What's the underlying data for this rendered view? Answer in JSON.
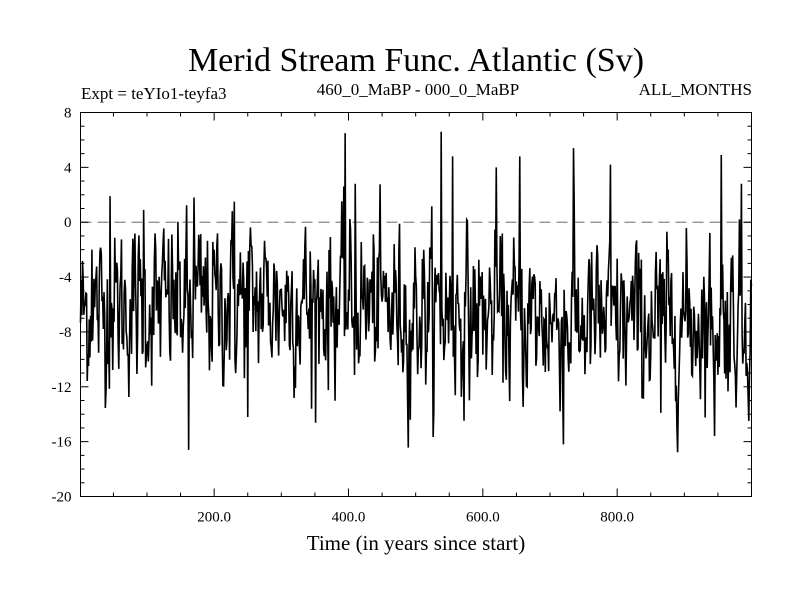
{
  "chart_data": {
    "type": "line",
    "title": "Merid Stream Func. Atlantic (Sv)",
    "subtitle_left": "Expt = teYIo1-teyfa3",
    "subtitle_center": "460_0_MaBP - 000_0_MaBP",
    "subtitle_right": "ALL_MONTHS",
    "xlabel": "Time (in years since start)",
    "ylabel": "",
    "xlim": [
      1,
      1000
    ],
    "ylim": [
      -20,
      8
    ],
    "y_ticks": [
      8,
      4,
      0,
      -4,
      -8,
      -12,
      -16,
      -20
    ],
    "y_tick_labels": [
      "8",
      "4",
      "0",
      "-4",
      "-8",
      "-12",
      "-16",
      "-20"
    ],
    "x_ticks": [
      200,
      400,
      600,
      800
    ],
    "x_tick_labels": [
      "200.0",
      "400.0",
      "600.0",
      "800.0"
    ],
    "reference_line": {
      "y": 0,
      "style": "dashed",
      "color": "#888888"
    },
    "series": [
      {
        "name": "Merid Stream Func. Atlantic",
        "color": "#000000",
        "x_start": 1,
        "x_step": 1,
        "n_points": 1000,
        "mean": -6.5,
        "noise_sd": 2.7,
        "peaks": [
          {
            "x": 18,
            "y": -2
          },
          {
            "x": 45,
            "y": 1.9
          },
          {
            "x": 95,
            "y": 0.9
          },
          {
            "x": 162,
            "y": -16.6
          },
          {
            "x": 170,
            "y": 1.8
          },
          {
            "x": 230,
            "y": 1.5
          },
          {
            "x": 250,
            "y": -14.2
          },
          {
            "x": 345,
            "y": -13.6
          },
          {
            "x": 395,
            "y": 6.5
          },
          {
            "x": 410,
            "y": 2.8
          },
          {
            "x": 492,
            "y": -14.4
          },
          {
            "x": 538,
            "y": 6.6
          },
          {
            "x": 555,
            "y": 4.8
          },
          {
            "x": 620,
            "y": 4.0
          },
          {
            "x": 655,
            "y": 4.8
          },
          {
            "x": 720,
            "y": -16.2
          },
          {
            "x": 735,
            "y": 5.4
          },
          {
            "x": 790,
            "y": 4.2
          },
          {
            "x": 865,
            "y": -13.9
          },
          {
            "x": 945,
            "y": -15.6
          },
          {
            "x": 955,
            "y": 4.9
          },
          {
            "x": 985,
            "y": 2.8
          }
        ]
      }
    ]
  }
}
